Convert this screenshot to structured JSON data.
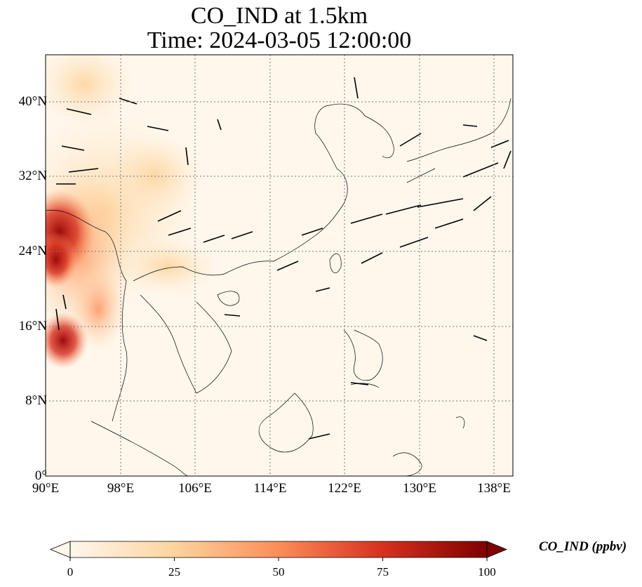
{
  "title": {
    "line1": "CO_IND at 1.5km",
    "line2": "Time: 2024-03-05 12:00:00"
  },
  "map": {
    "lon_range": [
      90,
      140
    ],
    "lat_range": [
      0,
      45
    ],
    "x_ticks": [
      "90°E",
      "98°E",
      "106°E",
      "114°E",
      "122°E",
      "130°E",
      "138°E"
    ],
    "y_ticks": [
      "0°",
      "8°N",
      "16°N",
      "24°N",
      "32°N",
      "40°N"
    ],
    "gridlines": "dotted",
    "field_colormap": "OrRd",
    "vector_color": "#000000"
  },
  "colorbar": {
    "label": "CO_IND (ppbv)",
    "ticks": [
      "0",
      "25",
      "50",
      "75",
      "100"
    ],
    "min": 0,
    "max": 100,
    "extend": "both",
    "colors": [
      "#fff7ec",
      "#fdd49e",
      "#fc8d59",
      "#d7301f",
      "#7f0000"
    ]
  }
}
